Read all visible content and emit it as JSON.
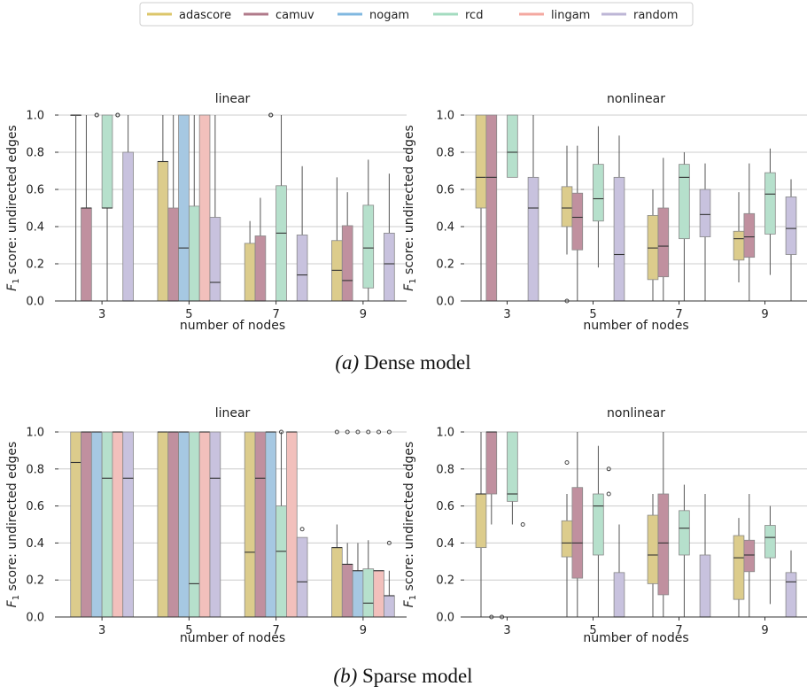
{
  "legend": [
    {
      "name": "adascore",
      "color": "#dcc66a"
    },
    {
      "name": "camuv",
      "color": "#b07a8a"
    },
    {
      "name": "nogam",
      "color": "#80b8e0"
    },
    {
      "name": "rcd",
      "color": "#a4dcc0"
    },
    {
      "name": "lingam",
      "color": "#f4a8a0"
    },
    {
      "name": "random",
      "color": "#bdb6d6"
    }
  ],
  "box_fill_colors": [
    "#dccc8c",
    "#c0909f",
    "#a6c8e2",
    "#b6e0cc",
    "#f2c0bc",
    "#c8c2de"
  ],
  "captions": {
    "dense_letter": "(a)",
    "dense_text": " Dense model",
    "sparse_letter": "(b)",
    "sparse_text": " Sparse model"
  },
  "chart_data": [
    {
      "id": "dense-linear",
      "type": "box",
      "title": "linear",
      "xlabel": "number of nodes",
      "ylabel": "F1 score: undirected edges",
      "categories": [
        "3",
        "5",
        "7",
        "9"
      ],
      "ylim": [
        0,
        1
      ],
      "yticks": [
        "0.0",
        "0.2",
        "0.4",
        "0.6",
        "0.8",
        "1.0"
      ],
      "grid": true,
      "boxes": [
        [
          [
            0,
            1,
            1,
            1,
            1,
            []
          ],
          [
            0,
            0,
            0.5,
            0.5,
            1,
            []
          ],
          [
            0,
            0,
            0,
            0,
            0,
            [
              1,
              1
            ]
          ],
          [
            0,
            0.5,
            0.5,
            1,
            1,
            []
          ],
          [
            0,
            0,
            0,
            0,
            0,
            [
              1,
              1
            ]
          ],
          [
            0,
            0,
            0,
            0.8,
            1,
            []
          ]
        ],
        [
          [
            0,
            0,
            0.75,
            0.75,
            1,
            []
          ],
          [
            0,
            0,
            0,
            0.5,
            1,
            []
          ],
          [
            0,
            0,
            0.285,
            1,
            1,
            []
          ],
          [
            0,
            0,
            0,
            0.51,
            1,
            []
          ],
          [
            0,
            0,
            0,
            1,
            1,
            []
          ],
          [
            0,
            0,
            0.1,
            0.45,
            1,
            []
          ]
        ],
        [
          [
            0,
            0,
            0,
            0.31,
            0.43,
            []
          ],
          [
            0,
            0,
            0,
            0.35,
            0.555,
            []
          ],
          [
            0,
            0,
            0,
            0,
            0,
            [
              1,
              1,
              1
            ]
          ],
          [
            0,
            0,
            0.365,
            0.62,
            1,
            []
          ],
          [
            0,
            0,
            0,
            0,
            0,
            []
          ],
          [
            0,
            0,
            0.14,
            0.355,
            0.725,
            []
          ]
        ],
        [
          [
            0,
            0,
            0.165,
            0.325,
            0.665,
            []
          ],
          [
            0,
            0,
            0.11,
            0.405,
            0.585,
            []
          ],
          [
            0,
            0,
            0,
            0,
            0,
            []
          ],
          [
            0,
            0.07,
            0.285,
            0.515,
            0.76,
            []
          ],
          [
            0,
            0,
            0,
            0,
            0,
            []
          ],
          [
            0,
            0,
            0.2,
            0.365,
            0.685,
            []
          ]
        ]
      ]
    },
    {
      "id": "dense-nonlinear",
      "type": "box",
      "title": "nonlinear",
      "xlabel": "number of nodes",
      "ylabel": "F1 score: undirected edges",
      "categories": [
        "3",
        "5",
        "7",
        "9"
      ],
      "ylim": [
        0,
        1
      ],
      "yticks": [
        "0.0",
        "0.2",
        "0.4",
        "0.6",
        "0.8",
        "1.0"
      ],
      "grid": true,
      "boxes": [
        [
          [
            0,
            0.5,
            0.665,
            1,
            1,
            []
          ],
          [
            0,
            0,
            0.665,
            1,
            1,
            []
          ],
          [
            0,
            0,
            0,
            0,
            0,
            []
          ],
          [
            0.665,
            0.665,
            0.8,
            1,
            1,
            []
          ],
          [
            0,
            0,
            0,
            0,
            0,
            []
          ],
          [
            0,
            0,
            0.5,
            0.665,
            1,
            []
          ]
        ],
        [
          [
            0.25,
            0.4,
            0.5,
            0.615,
            0.835,
            [
              0
            ]
          ],
          [
            0,
            0.275,
            0.45,
            0.58,
            0.835,
            []
          ],
          [
            0,
            0,
            0,
            0,
            0,
            []
          ],
          [
            0.18,
            0.43,
            0.55,
            0.735,
            0.94,
            []
          ],
          [
            0,
            0,
            0,
            0,
            0,
            []
          ],
          [
            0,
            0,
            0.25,
            0.665,
            0.89,
            []
          ]
        ],
        [
          [
            0,
            0.115,
            0.285,
            0.46,
            0.6,
            []
          ],
          [
            0,
            0.13,
            0.295,
            0.5,
            0.77,
            []
          ],
          [
            0,
            0,
            0,
            0,
            0,
            []
          ],
          [
            0,
            0.335,
            0.665,
            0.735,
            0.8,
            []
          ],
          [
            0,
            0,
            0,
            0,
            0,
            []
          ],
          [
            0,
            0.345,
            0.465,
            0.6,
            0.74,
            []
          ]
        ],
        [
          [
            0.1,
            0.22,
            0.335,
            0.375,
            0.585,
            []
          ],
          [
            0,
            0.235,
            0.345,
            0.47,
            0.74,
            []
          ],
          [
            0,
            0,
            0,
            0,
            0,
            []
          ],
          [
            0.14,
            0.36,
            0.575,
            0.69,
            0.82,
            []
          ],
          [
            0,
            0,
            0,
            0,
            0,
            []
          ],
          [
            0,
            0.25,
            0.39,
            0.56,
            0.655,
            []
          ]
        ]
      ]
    },
    {
      "id": "sparse-linear",
      "type": "box",
      "title": "linear",
      "xlabel": "number of nodes",
      "ylabel": "F1 score: undirected edges",
      "categories": [
        "3",
        "5",
        "7",
        "9"
      ],
      "ylim": [
        0,
        1
      ],
      "yticks": [
        "0.0",
        "0.2",
        "0.4",
        "0.6",
        "0.8",
        "1.0"
      ],
      "grid": true,
      "boxes": [
        [
          [
            0,
            0,
            0.835,
            1,
            1,
            []
          ],
          [
            0,
            0,
            1,
            1,
            1,
            []
          ],
          [
            0,
            0,
            1,
            1,
            1,
            []
          ],
          [
            0,
            0,
            0.75,
            1,
            1,
            []
          ],
          [
            0,
            0,
            1,
            1,
            1,
            []
          ],
          [
            0,
            0,
            0.75,
            1,
            1,
            []
          ]
        ],
        [
          [
            0,
            0,
            1,
            1,
            1,
            []
          ],
          [
            0,
            0,
            1,
            1,
            1,
            []
          ],
          [
            0,
            0,
            1,
            1,
            1,
            []
          ],
          [
            0,
            0,
            0.18,
            1,
            1,
            []
          ],
          [
            0,
            0,
            1,
            1,
            1,
            []
          ],
          [
            0,
            0,
            0.75,
            1,
            1,
            []
          ]
        ],
        [
          [
            0,
            0,
            0.35,
            1,
            1,
            []
          ],
          [
            0,
            0,
            0.75,
            1,
            1,
            []
          ],
          [
            0,
            0,
            1,
            1,
            1,
            []
          ],
          [
            0,
            0,
            0.355,
            0.6,
            1,
            [
              1
            ]
          ],
          [
            0,
            0,
            1,
            1,
            1,
            []
          ],
          [
            0,
            0,
            0.19,
            0.43,
            0.43,
            [
              0.475
            ]
          ]
        ],
        [
          [
            0,
            0,
            0.375,
            0.375,
            0.5,
            [
              1
            ]
          ],
          [
            0,
            0,
            0.285,
            0.285,
            0.4,
            [
              1
            ]
          ],
          [
            0,
            0,
            0.25,
            0.25,
            0.4,
            [
              1
            ]
          ],
          [
            0,
            0,
            0.075,
            0.26,
            0.415,
            [
              1
            ]
          ],
          [
            0,
            0,
            0.25,
            0.25,
            0.25,
            [
              1
            ]
          ],
          [
            0,
            0,
            0.115,
            0.115,
            0.25,
            [
              1,
              0.4
            ]
          ]
        ]
      ]
    },
    {
      "id": "sparse-nonlinear",
      "type": "box",
      "title": "nonlinear",
      "xlabel": "number of nodes",
      "ylabel": "F1 score: undirected edges",
      "categories": [
        "3",
        "5",
        "7",
        "9"
      ],
      "ylim": [
        0,
        1
      ],
      "yticks": [
        "0.0",
        "0.2",
        "0.4",
        "0.6",
        "0.8",
        "1.0"
      ],
      "grid": true,
      "boxes": [
        [
          [
            0,
            0.375,
            0.665,
            0.665,
            1,
            []
          ],
          [
            0.5,
            0.665,
            1,
            1,
            1,
            [
              0
            ]
          ],
          [
            0,
            0,
            0,
            0,
            0,
            [
              0
            ]
          ],
          [
            0.5,
            0.625,
            0.665,
            1,
            1,
            []
          ],
          [
            0,
            0,
            0,
            0,
            0,
            [
              0.5
            ]
          ],
          [
            0,
            0,
            0,
            0,
            0,
            []
          ]
        ],
        [
          [
            0,
            0.325,
            0.4,
            0.52,
            0.665,
            [
              0.835
            ]
          ],
          [
            0,
            0.21,
            0.4,
            0.7,
            1,
            []
          ],
          [
            0,
            0,
            0,
            0,
            0,
            []
          ],
          [
            0,
            0.335,
            0.6,
            0.665,
            0.925,
            []
          ],
          [
            0,
            0,
            0,
            0,
            0,
            [
              0.8,
              0.665
            ]
          ],
          [
            0,
            0,
            0,
            0.24,
            0.5,
            []
          ]
        ],
        [
          [
            0,
            0.18,
            0.335,
            0.55,
            0.665,
            []
          ],
          [
            0,
            0.12,
            0.4,
            0.665,
            1,
            []
          ],
          [
            0,
            0,
            0,
            0,
            0,
            []
          ],
          [
            0,
            0.335,
            0.48,
            0.575,
            0.715,
            []
          ],
          [
            0,
            0,
            0,
            0,
            0,
            []
          ],
          [
            0,
            0,
            0,
            0.335,
            0.665,
            []
          ]
        ],
        [
          [
            0,
            0.095,
            0.32,
            0.44,
            0.535,
            []
          ],
          [
            0,
            0.245,
            0.335,
            0.415,
            0.665,
            []
          ],
          [
            0,
            0,
            0,
            0,
            0,
            []
          ],
          [
            0.07,
            0.32,
            0.43,
            0.495,
            0.6,
            []
          ],
          [
            0,
            0,
            0,
            0,
            0,
            []
          ],
          [
            0,
            0,
            0.19,
            0.24,
            0.36,
            []
          ]
        ]
      ]
    }
  ]
}
